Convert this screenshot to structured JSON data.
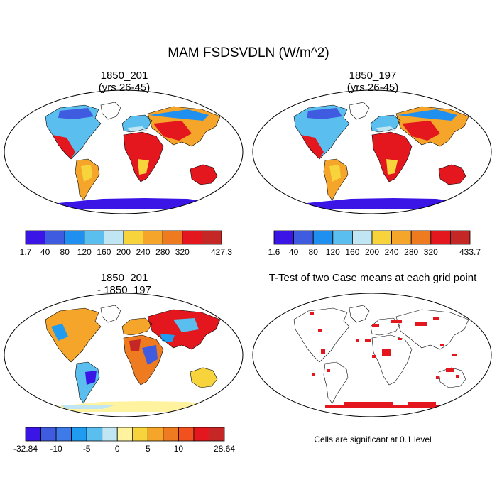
{
  "figure": {
    "title": "MAM FSDSVDLN (W/m^2)"
  },
  "panels": [
    {
      "title_line1": "1850_201",
      "title_line2": "(yrs 26-45)",
      "colorbar": {
        "colors": [
          "#3a15e6",
          "#3f5ce0",
          "#1f8ff0",
          "#5abfee",
          "#bfe6f2",
          "#f7d43c",
          "#f5a52a",
          "#ee7b20",
          "#e3171d",
          "#c52727"
        ],
        "labels": [
          "1.7",
          "40",
          "80",
          "120",
          "160",
          "200",
          "240",
          "280",
          "320",
          "427.3"
        ]
      }
    },
    {
      "title_line1": "1850_197",
      "title_line2": "(yrs 26-45)",
      "colorbar": {
        "colors": [
          "#3a15e6",
          "#3f5ce0",
          "#1f8ff0",
          "#5abfee",
          "#bfe6f2",
          "#f7d43c",
          "#f5a52a",
          "#ee7b20",
          "#e3171d",
          "#c52727"
        ],
        "labels": [
          "1.6",
          "40",
          "80",
          "120",
          "160",
          "200",
          "240",
          "280",
          "320",
          "433.7"
        ]
      }
    },
    {
      "title_line1": "1850_201",
      "title_line2": "- 1850_197",
      "colorbar": {
        "colors": [
          "#3a15e6",
          "#3f5ce0",
          "#3e7ae8",
          "#1f9bf0",
          "#5abfee",
          "#bfe6f2",
          "#fff3a0",
          "#f7d43c",
          "#f5a52a",
          "#ee7b20",
          "#f2501f",
          "#e3171d",
          "#c52727"
        ],
        "labels": [
          "-32.84",
          "-10",
          "-5",
          "0",
          "5",
          "10",
          "28.64"
        ]
      }
    },
    {
      "title": "T-Test of two Case means at each grid point",
      "footnote": "Cells are significant at 0.1 level"
    }
  ]
}
